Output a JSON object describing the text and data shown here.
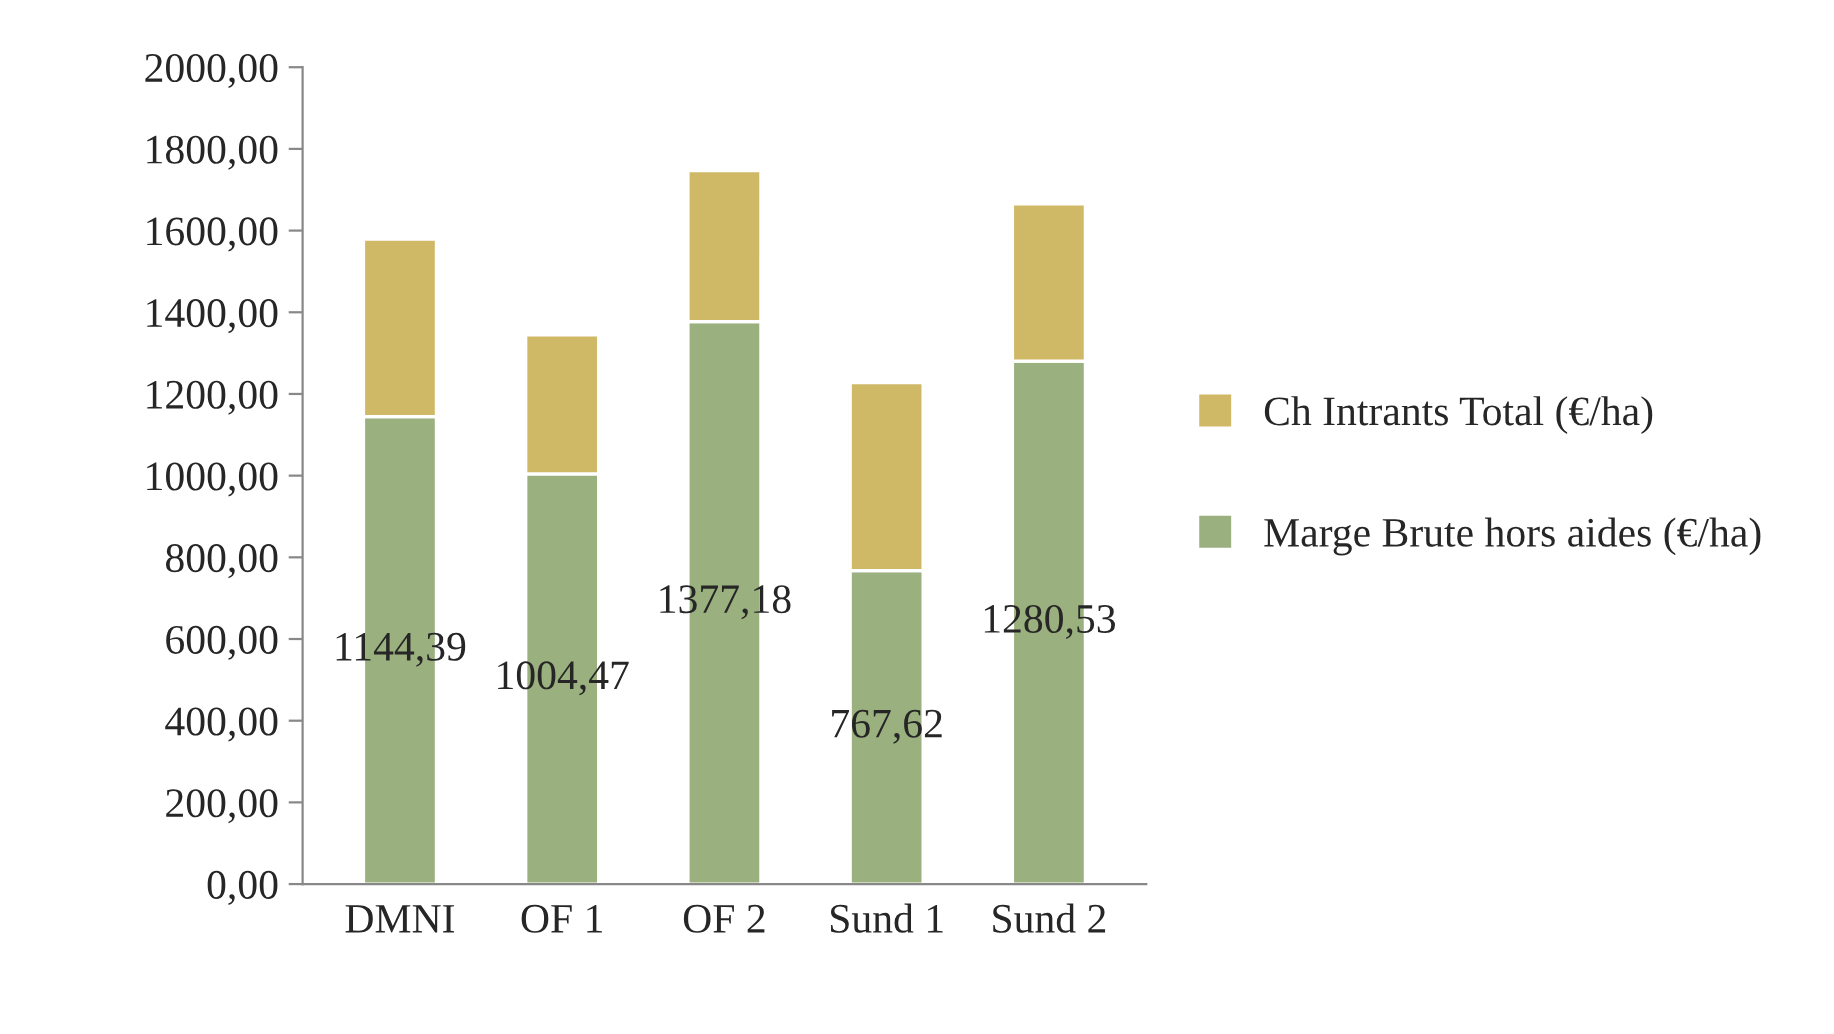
{
  "chart_data": {
    "type": "bar",
    "stacked": true,
    "categories": [
      "DMNI",
      "OF 1",
      "OF 2",
      "Sund 1",
      "Sund 2"
    ],
    "series": [
      {
        "name": "Marge Brute hors aides (€/ha)",
        "color": "#9bb07f",
        "values": [
          1144.39,
          1004.47,
          1377.18,
          767.62,
          1280.53
        ],
        "value_labels": [
          "1144,39",
          "1004,47",
          "1377,18",
          "767,62",
          "1280,53"
        ]
      },
      {
        "name": "Ch Intrants Total (€/ha)",
        "color": "#cfb967",
        "values": [
          435,
          340,
          370,
          460,
          385
        ]
      }
    ],
    "ylim": [
      0,
      2000
    ],
    "yticks": [
      {
        "value": 0,
        "label": "0,00"
      },
      {
        "value": 200,
        "label": "200,00"
      },
      {
        "value": 400,
        "label": "400,00"
      },
      {
        "value": 600,
        "label": "600,00"
      },
      {
        "value": 800,
        "label": "800,00"
      },
      {
        "value": 1000,
        "label": "1000,00"
      },
      {
        "value": 1200,
        "label": "1200,00"
      },
      {
        "value": 1400,
        "label": "1400,00"
      },
      {
        "value": 1600,
        "label": "1600,00"
      },
      {
        "value": 1800,
        "label": "1800,00"
      },
      {
        "value": 2000,
        "label": "2000,00"
      }
    ],
    "grid": false,
    "legend": "right"
  }
}
